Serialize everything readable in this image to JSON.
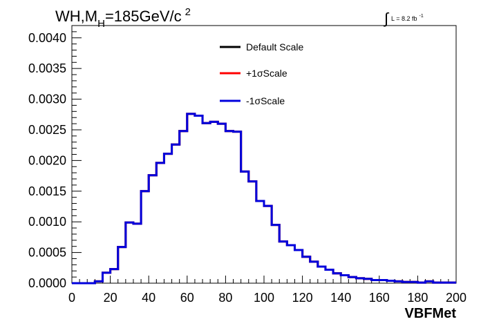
{
  "chart_data": {
    "type": "line",
    "style": "step-histogram",
    "title": {
      "main": "WH,M",
      "subscript": "H",
      "rest": "=185GeV/c",
      "superscript": "2"
    },
    "luminosity": {
      "integral_symbol": "∫",
      "text": "L = 8.2 fb",
      "superscript": "-1"
    },
    "xlabel": "VBFMet",
    "ylabel": "",
    "xlim": [
      0,
      200
    ],
    "ylim": [
      0,
      0.0042
    ],
    "x_ticks": [
      0,
      20,
      40,
      60,
      80,
      100,
      120,
      140,
      160,
      180,
      200
    ],
    "x_tick_labels": [
      "0",
      "20",
      "40",
      "60",
      "80",
      "100",
      "120",
      "140",
      "160",
      "180",
      "200"
    ],
    "y_ticks": [
      0,
      0.0005,
      0.001,
      0.0015,
      0.002,
      0.0025,
      0.003,
      0.0035,
      0.004
    ],
    "y_tick_labels": [
      "0.0000",
      "0.0005",
      "0.0010",
      "0.0015",
      "0.0020",
      "0.0025",
      "0.0030",
      "0.0035",
      "0.0040"
    ],
    "grid": false,
    "legend_placement": "top-center",
    "bin_edges": [
      0,
      4,
      8,
      12,
      16,
      20,
      24,
      28,
      32,
      36,
      40,
      44,
      48,
      52,
      56,
      60,
      64,
      68,
      72,
      76,
      80,
      84,
      88,
      92,
      96,
      100,
      104,
      108,
      112,
      116,
      120,
      124,
      128,
      132,
      136,
      140,
      144,
      148,
      152,
      156,
      160,
      164,
      168,
      172,
      176,
      180,
      184,
      188,
      192,
      196,
      200
    ],
    "series": [
      {
        "name": "Default Scale",
        "color": "#000000",
        "values": [
          0,
          0,
          0,
          3e-05,
          0.00017,
          0.00023,
          0.00059,
          0.00099,
          0.00097,
          0.0015,
          0.00176,
          0.00196,
          0.00211,
          0.00226,
          0.00248,
          0.00276,
          0.00273,
          0.00261,
          0.00263,
          0.0026,
          0.00248,
          0.00247,
          0.00182,
          0.00166,
          0.00134,
          0.00126,
          0.00095,
          0.00068,
          0.00062,
          0.00054,
          0.00043,
          0.00035,
          0.00027,
          0.00022,
          0.00016,
          0.00013,
          0.0001,
          8e-05,
          7e-05,
          5e-05,
          5e-05,
          4e-05,
          3e-05,
          2e-05,
          2e-05,
          1e-05,
          3e-05,
          1e-05,
          1e-05,
          1e-05
        ]
      },
      {
        "name": "+1σScale",
        "color": "#ff0000",
        "values": [
          0,
          0,
          0,
          3e-05,
          0.00017,
          0.00023,
          0.00059,
          0.00099,
          0.00097,
          0.0015,
          0.00176,
          0.00196,
          0.00211,
          0.00226,
          0.00248,
          0.00276,
          0.00273,
          0.00261,
          0.00263,
          0.0026,
          0.00248,
          0.00247,
          0.00182,
          0.00166,
          0.00134,
          0.00126,
          0.00095,
          0.00068,
          0.00062,
          0.00054,
          0.00043,
          0.00035,
          0.00027,
          0.00022,
          0.00016,
          0.00013,
          0.0001,
          8e-05,
          7e-05,
          5e-05,
          5e-05,
          4e-05,
          3e-05,
          2e-05,
          2e-05,
          1e-05,
          3e-05,
          1e-05,
          1e-05,
          1e-05
        ]
      },
      {
        "name": "-1σScale",
        "color": "#0000dd",
        "values": [
          0,
          0,
          0,
          3e-05,
          0.00017,
          0.00023,
          0.00059,
          0.00099,
          0.00097,
          0.0015,
          0.00176,
          0.00196,
          0.00211,
          0.00226,
          0.00248,
          0.00276,
          0.00273,
          0.00261,
          0.00263,
          0.0026,
          0.00248,
          0.00247,
          0.00182,
          0.00166,
          0.00134,
          0.00126,
          0.00095,
          0.00068,
          0.00062,
          0.00054,
          0.00043,
          0.00035,
          0.00027,
          0.00022,
          0.00016,
          0.00013,
          0.0001,
          8e-05,
          7e-05,
          5e-05,
          5e-05,
          4e-05,
          3e-05,
          2e-05,
          2e-05,
          1e-05,
          3e-05,
          1e-05,
          1e-05,
          1e-05
        ]
      }
    ]
  }
}
